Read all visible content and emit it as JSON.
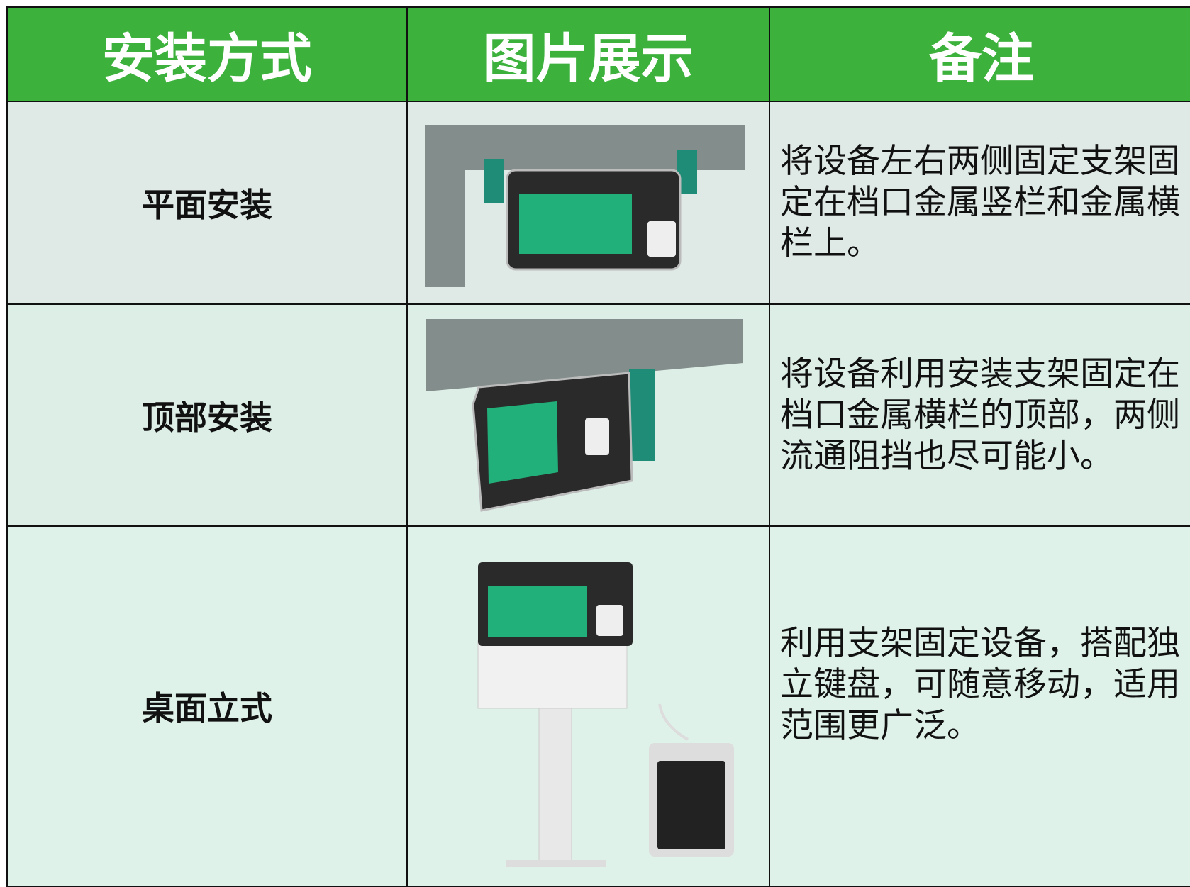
{
  "header": {
    "columns": [
      "安装方式",
      "图片展示",
      "备注"
    ]
  },
  "rows": [
    {
      "method": "平面安装",
      "note": "将设备左右两侧固定支架固定在档口金属竖栏和金属横栏上。"
    },
    {
      "method": "顶部安装",
      "note": "将设备利用安装支架固定在档口金属横栏的顶部，两侧流通阻挡也尽可能小。"
    },
    {
      "method": "桌面立式",
      "note": "利用支架固定设备，搭配独立键盘，可随意移动，适用范围更广泛。"
    }
  ]
}
